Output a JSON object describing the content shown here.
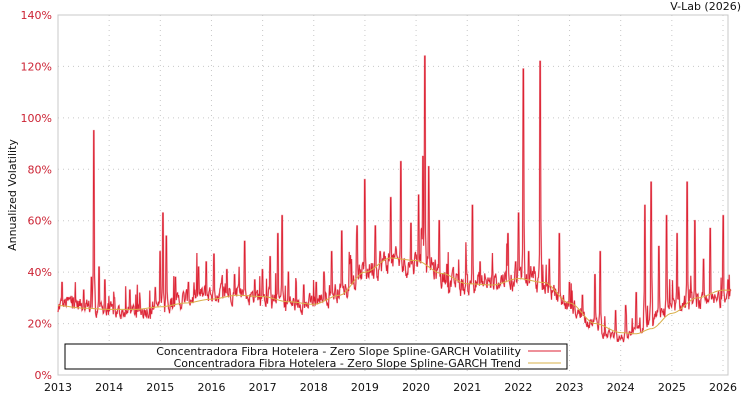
{
  "header": {
    "credit": "V-Lab (2026)"
  },
  "chart_data": {
    "type": "line",
    "title": "",
    "xlabel": "",
    "ylabel": "Annualized Volatility",
    "xlim": [
      2013,
      2026.15
    ],
    "ylim": [
      0,
      140
    ],
    "grid": true,
    "legend_position": "bottom-inside",
    "x_ticks": [
      "2013",
      "2014",
      "2015",
      "2016",
      "2017",
      "2018",
      "2019",
      "2020",
      "2021",
      "2022",
      "2023",
      "2024",
      "2025",
      "2026"
    ],
    "y_ticks": [
      "0%",
      "20%",
      "40%",
      "60%",
      "80%",
      "100%",
      "120%",
      "140%"
    ],
    "series": [
      {
        "name": "Concentradora Fibra Hotelera - Zero Slope Spline-GARCH Volatility",
        "color": "#dd2233",
        "baseline": [
          [
            2013.0,
            24
          ],
          [
            2013.25,
            25
          ],
          [
            2013.5,
            24
          ],
          [
            2013.75,
            23
          ],
          [
            2014.0,
            22
          ],
          [
            2014.25,
            22
          ],
          [
            2014.5,
            22
          ],
          [
            2014.75,
            23
          ],
          [
            2015.0,
            24
          ],
          [
            2015.25,
            25
          ],
          [
            2015.5,
            26
          ],
          [
            2015.75,
            27
          ],
          [
            2016.0,
            28
          ],
          [
            2016.25,
            28
          ],
          [
            2016.5,
            29
          ],
          [
            2016.75,
            27
          ],
          [
            2017.0,
            27
          ],
          [
            2017.25,
            26
          ],
          [
            2017.5,
            25
          ],
          [
            2017.75,
            24
          ],
          [
            2018.0,
            25
          ],
          [
            2018.25,
            27
          ],
          [
            2018.5,
            29
          ],
          [
            2018.75,
            31
          ],
          [
            2019.0,
            35
          ],
          [
            2019.25,
            37
          ],
          [
            2019.5,
            38
          ],
          [
            2019.75,
            37
          ],
          [
            2020.0,
            38
          ],
          [
            2020.25,
            37
          ],
          [
            2020.5,
            33
          ],
          [
            2020.75,
            31
          ],
          [
            2021.0,
            30
          ],
          [
            2021.25,
            31
          ],
          [
            2021.5,
            31
          ],
          [
            2021.75,
            33
          ],
          [
            2022.0,
            33
          ],
          [
            2022.25,
            32
          ],
          [
            2022.5,
            30
          ],
          [
            2022.75,
            27
          ],
          [
            2023.0,
            24
          ],
          [
            2023.25,
            21
          ],
          [
            2023.5,
            18
          ],
          [
            2023.75,
            15
          ],
          [
            2024.0,
            14
          ],
          [
            2024.25,
            15
          ],
          [
            2024.5,
            18
          ],
          [
            2024.75,
            21
          ],
          [
            2025.0,
            23
          ],
          [
            2025.25,
            24
          ],
          [
            2025.5,
            25
          ],
          [
            2025.75,
            25
          ],
          [
            2026.0,
            26
          ],
          [
            2026.15,
            27
          ]
        ],
        "spikes": [
          [
            2013.08,
            36
          ],
          [
            2013.3,
            30
          ],
          [
            2013.5,
            33
          ],
          [
            2013.65,
            38
          ],
          [
            2013.7,
            95
          ],
          [
            2013.8,
            42
          ],
          [
            2013.92,
            37
          ],
          [
            2014.1,
            30
          ],
          [
            2014.4,
            33
          ],
          [
            2014.6,
            29
          ],
          [
            2014.9,
            34
          ],
          [
            2015.0,
            48
          ],
          [
            2015.05,
            63
          ],
          [
            2015.12,
            54
          ],
          [
            2015.3,
            38
          ],
          [
            2015.55,
            36
          ],
          [
            2015.75,
            42
          ],
          [
            2015.9,
            44
          ],
          [
            2016.05,
            47
          ],
          [
            2016.3,
            41
          ],
          [
            2016.45,
            39
          ],
          [
            2016.65,
            52
          ],
          [
            2016.85,
            37
          ],
          [
            2017.0,
            41
          ],
          [
            2017.15,
            46
          ],
          [
            2017.3,
            55
          ],
          [
            2017.38,
            62
          ],
          [
            2017.5,
            40
          ],
          [
            2017.8,
            35
          ],
          [
            2018.05,
            36
          ],
          [
            2018.2,
            40
          ],
          [
            2018.35,
            48
          ],
          [
            2018.55,
            56
          ],
          [
            2018.72,
            44
          ],
          [
            2018.85,
            58
          ],
          [
            2019.0,
            76
          ],
          [
            2019.2,
            58
          ],
          [
            2019.3,
            48
          ],
          [
            2019.5,
            69
          ],
          [
            2019.7,
            83
          ],
          [
            2019.9,
            59
          ],
          [
            2020.05,
            70
          ],
          [
            2020.13,
            85
          ],
          [
            2020.17,
            124
          ],
          [
            2020.25,
            81
          ],
          [
            2020.45,
            60
          ],
          [
            2020.6,
            43
          ],
          [
            2020.8,
            39
          ],
          [
            2021.0,
            39
          ],
          [
            2021.1,
            66
          ],
          [
            2021.25,
            44
          ],
          [
            2021.5,
            41
          ],
          [
            2021.8,
            55
          ],
          [
            2021.95,
            44
          ],
          [
            2022.0,
            63
          ],
          [
            2022.1,
            119
          ],
          [
            2022.2,
            48
          ],
          [
            2022.3,
            42
          ],
          [
            2022.43,
            122
          ],
          [
            2022.6,
            45
          ],
          [
            2022.8,
            55
          ],
          [
            2023.0,
            36
          ],
          [
            2023.25,
            31
          ],
          [
            2023.5,
            39
          ],
          [
            2023.6,
            48
          ],
          [
            2023.9,
            25
          ],
          [
            2024.1,
            27
          ],
          [
            2024.3,
            32
          ],
          [
            2024.47,
            66
          ],
          [
            2024.6,
            75
          ],
          [
            2024.75,
            50
          ],
          [
            2024.9,
            62
          ],
          [
            2025.1,
            55
          ],
          [
            2025.3,
            75
          ],
          [
            2025.45,
            60
          ],
          [
            2025.62,
            45
          ],
          [
            2025.75,
            57
          ],
          [
            2026.0,
            62
          ],
          [
            2026.1,
            37
          ]
        ]
      },
      {
        "name": "Concentradora Fibra Hotelera - Zero Slope Spline-GARCH Trend",
        "color": "#d9b04a",
        "points": [
          [
            2013.0,
            27
          ],
          [
            2013.5,
            26
          ],
          [
            2014.0,
            25.5
          ],
          [
            2014.5,
            25.5
          ],
          [
            2015.0,
            26.5
          ],
          [
            2015.5,
            28
          ],
          [
            2016.0,
            29.5
          ],
          [
            2016.5,
            31
          ],
          [
            2017.0,
            30.5
          ],
          [
            2017.5,
            28.5
          ],
          [
            2018.0,
            27.5
          ],
          [
            2018.5,
            31
          ],
          [
            2019.0,
            40
          ],
          [
            2019.5,
            45.5
          ],
          [
            2020.0,
            44.5
          ],
          [
            2020.5,
            39.5
          ],
          [
            2021.0,
            35.5
          ],
          [
            2021.5,
            35
          ],
          [
            2022.0,
            37.5
          ],
          [
            2022.5,
            36
          ],
          [
            2023.0,
            28
          ],
          [
            2023.5,
            20
          ],
          [
            2024.0,
            16.5
          ],
          [
            2024.3,
            16
          ],
          [
            2024.6,
            18
          ],
          [
            2025.0,
            24
          ],
          [
            2025.5,
            30
          ],
          [
            2026.0,
            33
          ],
          [
            2026.15,
            33
          ]
        ]
      }
    ]
  },
  "legend": {
    "items": [
      {
        "label": "Concentradora Fibra Hotelera - Zero Slope Spline-GARCH Volatility",
        "color": "#dd2233"
      },
      {
        "label": "Concentradora Fibra Hotelera - Zero Slope Spline-GARCH Trend",
        "color": "#d9b04a"
      }
    ]
  }
}
